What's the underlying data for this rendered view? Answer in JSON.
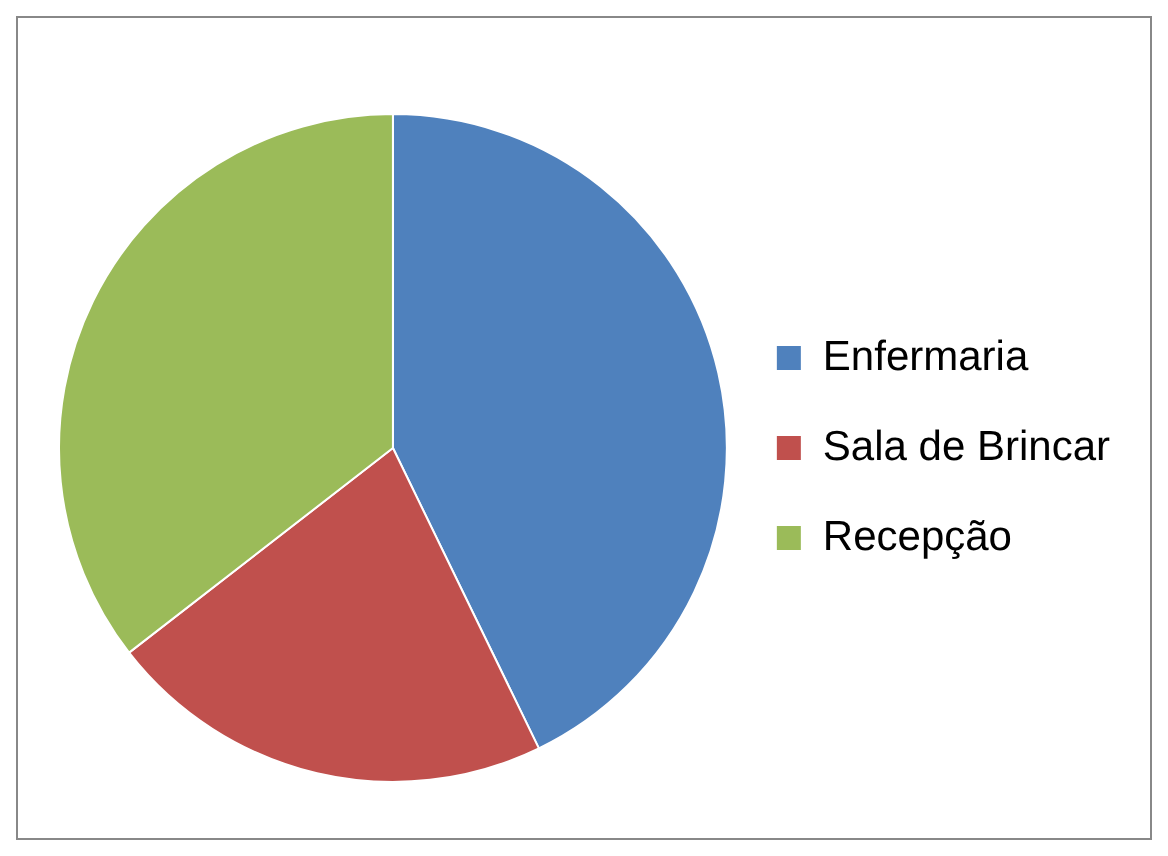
{
  "chart_data": {
    "type": "pie",
    "categories": [
      "Enfermaria",
      "Sala de Brincar",
      "Recepção"
    ],
    "values": [
      42.8,
      21.7,
      35.5
    ],
    "colors": [
      "#4f81bd",
      "#c0504d",
      "#9bbb59"
    ],
    "legend": "right"
  }
}
